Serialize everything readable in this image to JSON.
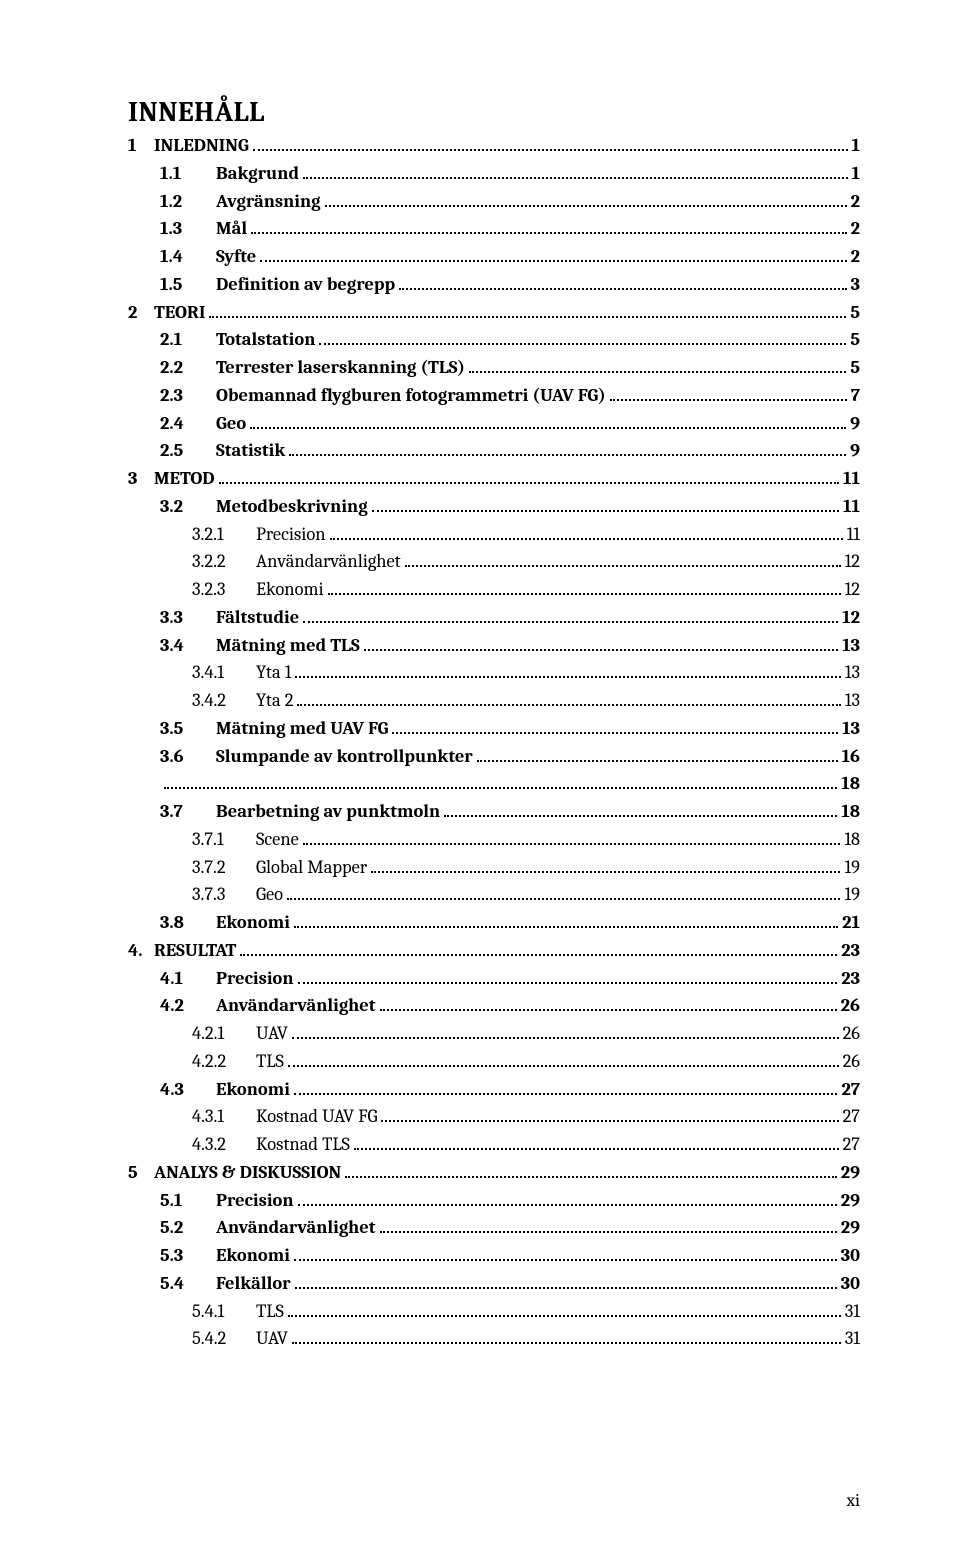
{
  "title": "INNEHÅLL",
  "page_number": "xi",
  "toc": [
    {
      "level": 1,
      "num": "1",
      "title": "INLEDNING",
      "page": "1"
    },
    {
      "level": 2,
      "num": "1.1",
      "title": "Bakgrund",
      "page": "1"
    },
    {
      "level": 2,
      "num": "1.2",
      "title": "Avgränsning",
      "page": "2"
    },
    {
      "level": 2,
      "num": "1.3",
      "title": "Mål",
      "page": "2"
    },
    {
      "level": 2,
      "num": "1.4",
      "title": "Syfte",
      "page": "2"
    },
    {
      "level": 2,
      "num": "1.5",
      "title": "Definition av begrepp",
      "page": "3"
    },
    {
      "level": 1,
      "num": "2",
      "title": "TEORI",
      "page": "5"
    },
    {
      "level": 2,
      "num": "2.1",
      "title": "Totalstation",
      "page": "5"
    },
    {
      "level": 2,
      "num": "2.2",
      "title": "Terrester laserskanning (TLS)",
      "page": "5"
    },
    {
      "level": 2,
      "num": "2.3",
      "title": "Obemannad flygburen fotogrammetri (UAV FG)",
      "page": "7"
    },
    {
      "level": 2,
      "num": "2.4",
      "title": "Geo",
      "page": "9"
    },
    {
      "level": 2,
      "num": "2.5",
      "title": "Statistik",
      "page": "9"
    },
    {
      "level": 1,
      "num": "3",
      "title": "METOD",
      "page": "11"
    },
    {
      "level": 2,
      "num": "3.2",
      "title": "Metodbeskrivning",
      "page": "11"
    },
    {
      "level": 3,
      "num": "3.2.1",
      "title": "Precision",
      "page": "11"
    },
    {
      "level": 3,
      "num": "3.2.2",
      "title": "Användarvänlighet",
      "page": "12"
    },
    {
      "level": 3,
      "num": "3.2.3",
      "title": "Ekonomi",
      "page": "12"
    },
    {
      "level": 2,
      "num": "3.3",
      "title": "Fältstudie",
      "page": "12"
    },
    {
      "level": 2,
      "num": "3.4",
      "title": "Mätning med TLS",
      "page": "13"
    },
    {
      "level": 3,
      "num": "3.4.1",
      "title": "Yta 1",
      "page": "13"
    },
    {
      "level": 3,
      "num": "3.4.2",
      "title": "Yta 2",
      "page": "13"
    },
    {
      "level": 2,
      "num": "3.5",
      "title": "Mätning med UAV FG",
      "page": "13"
    },
    {
      "level": 2,
      "num": "3.6",
      "title": "Slumpande av kontrollpunkter",
      "page": "16"
    },
    {
      "level": 2,
      "num": "",
      "title": "",
      "page": "18",
      "blank": true
    },
    {
      "level": 2,
      "num": "3.7",
      "title": "Bearbetning av punktmoln",
      "page": "18"
    },
    {
      "level": 3,
      "num": "3.7.1",
      "title": "Scene",
      "page": "18"
    },
    {
      "level": 3,
      "num": "3.7.2",
      "title": "Global Mapper",
      "page": "19"
    },
    {
      "level": 3,
      "num": "3.7.3",
      "title": "Geo",
      "page": "19"
    },
    {
      "level": 2,
      "num": "3.8",
      "title": "Ekonomi",
      "page": "21"
    },
    {
      "level": 1,
      "num": "4.",
      "title": "RESULTAT",
      "page": "23"
    },
    {
      "level": 2,
      "num": "4.1",
      "title": "Precision",
      "page": "23"
    },
    {
      "level": 2,
      "num": "4.2",
      "title": "Användarvänlighet",
      "page": "26"
    },
    {
      "level": 3,
      "num": "4.2.1",
      "title": "UAV",
      "page": "26"
    },
    {
      "level": 3,
      "num": "4.2.2",
      "title": "TLS",
      "page": "26"
    },
    {
      "level": 2,
      "num": "4.3",
      "title": "Ekonomi",
      "page": "27"
    },
    {
      "level": 3,
      "num": "4.3.1",
      "title": "Kostnad UAV FG",
      "page": "27"
    },
    {
      "level": 3,
      "num": "4.3.2",
      "title": "Kostnad TLS",
      "page": "27"
    },
    {
      "level": 1,
      "num": "5",
      "title": "ANALYS & DISKUSSION",
      "page": "29"
    },
    {
      "level": 2,
      "num": "5.1",
      "title": "Precision",
      "page": "29"
    },
    {
      "level": 2,
      "num": "5.2",
      "title": "Användarvänlighet",
      "page": "29"
    },
    {
      "level": 2,
      "num": "5.3",
      "title": "Ekonomi",
      "page": "30"
    },
    {
      "level": 2,
      "num": "5.4",
      "title": "Felkällor",
      "page": "30"
    },
    {
      "level": 3,
      "num": "5.4.1",
      "title": "TLS",
      "page": "31"
    },
    {
      "level": 3,
      "num": "5.4.2",
      "title": "UAV",
      "page": "31"
    }
  ]
}
